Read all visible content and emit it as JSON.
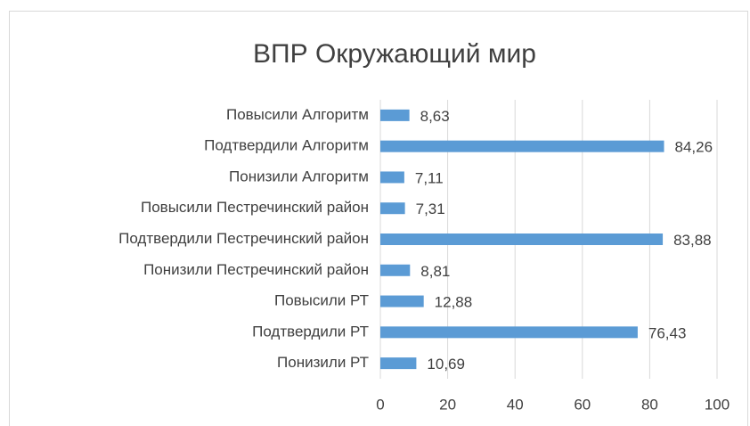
{
  "chart_data": {
    "type": "hbar",
    "title": "ВПР Окружающий мир",
    "categories": [
      "Повысили Алгоритм",
      "Подтвердили Алгоритм",
      "Понизили Алгоритм",
      "Повысили Пестречинский район",
      "Подтвердили Пестречинский район",
      "Понизили Пестречинский район",
      "Повысили РТ",
      "Подтвердили РТ",
      "Понизили РТ"
    ],
    "values": [
      8.63,
      84.26,
      7.11,
      7.31,
      83.88,
      8.81,
      12.88,
      76.43,
      10.69
    ],
    "value_labels": [
      "8,63",
      "84,26",
      "7,11",
      "7,31",
      "83,88",
      "8,81",
      "12,88",
      "76,43",
      "10,69"
    ],
    "color": "#5b9bd5",
    "xlim": [
      0,
      100
    ],
    "xticks": [
      0,
      20,
      40,
      60,
      80,
      100
    ],
    "grid": true
  }
}
